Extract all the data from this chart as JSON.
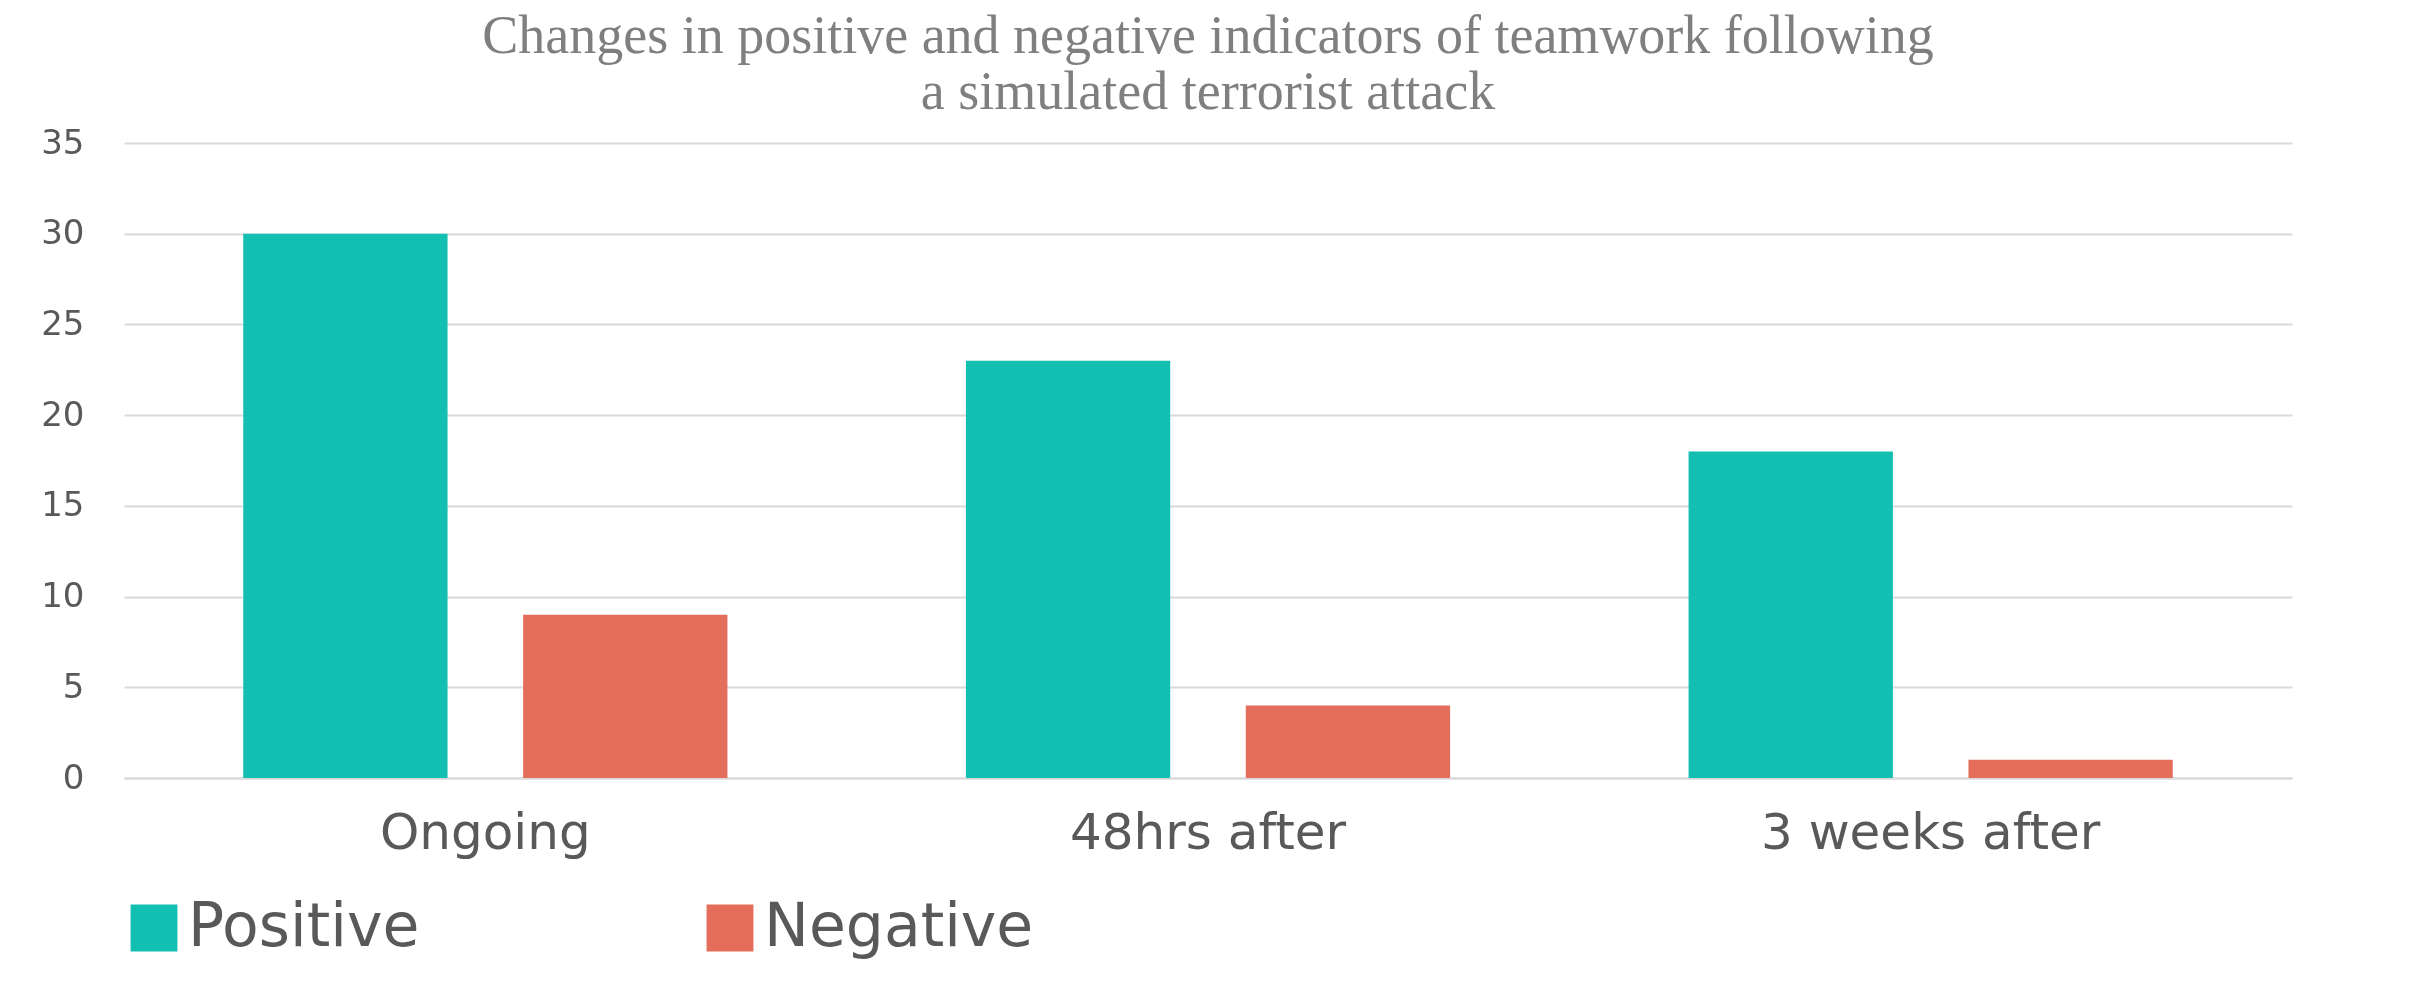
{
  "chart_data": {
    "type": "bar",
    "title": "Changes in positive and negative indicators of teamwork following a simulated terrorist attack",
    "categories": [
      "Ongoing",
      "48hrs after",
      "3 weeks after"
    ],
    "series": [
      {
        "name": "Positive",
        "color": "#12bfb0",
        "values": [
          30,
          23,
          18
        ]
      },
      {
        "name": "Negative",
        "color": "#e46d5c",
        "values": [
          9,
          4,
          1
        ]
      }
    ],
    "ylim": [
      0,
      35
    ],
    "yticks": [
      0,
      5,
      10,
      15,
      20,
      25,
      30,
      35
    ],
    "grid": "y",
    "legend": "bottom"
  }
}
